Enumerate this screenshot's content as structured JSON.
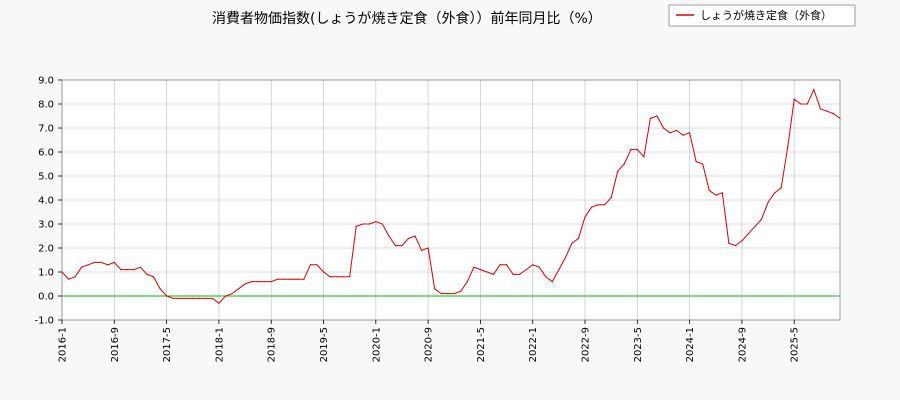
{
  "chart_data": {
    "type": "line",
    "title": "消費者物価指数(しょうが焼き定食（外食））前年同月比（%）",
    "xlabel": "",
    "ylabel": "",
    "ylim": [
      -1.0,
      9.0
    ],
    "y_ticks": [
      "-1.0",
      "0.0",
      "1.0",
      "2.0",
      "3.0",
      "4.0",
      "5.0",
      "6.0",
      "7.0",
      "8.0",
      "9.0"
    ],
    "x_ticks": [
      "2016-1",
      "2016-9",
      "2017-5",
      "2018-1",
      "2018-9",
      "2019-5",
      "2020-1",
      "2020-9",
      "2021-5",
      "2022-1",
      "2022-9",
      "2023-5",
      "2024-1",
      "2024-9",
      "2025-5"
    ],
    "grid": true,
    "legend_position": "top-right",
    "colors": {
      "series": "#dd0000",
      "zero_line": "#00bb00",
      "grid": "#cccccc"
    },
    "series": [
      {
        "name": "しょうが焼き定食（外食）",
        "x": [
          "2016-1",
          "2016-2",
          "2016-3",
          "2016-4",
          "2016-5",
          "2016-6",
          "2016-7",
          "2016-8",
          "2016-9",
          "2016-10",
          "2016-11",
          "2016-12",
          "2017-1",
          "2017-2",
          "2017-3",
          "2017-4",
          "2017-5",
          "2017-6",
          "2017-7",
          "2017-8",
          "2017-9",
          "2017-10",
          "2017-11",
          "2017-12",
          "2018-1",
          "2018-2",
          "2018-3",
          "2018-4",
          "2018-5",
          "2018-6",
          "2018-7",
          "2018-8",
          "2018-9",
          "2018-10",
          "2018-11",
          "2018-12",
          "2019-1",
          "2019-2",
          "2019-3",
          "2019-4",
          "2019-5",
          "2019-6",
          "2019-7",
          "2019-8",
          "2019-9",
          "2019-10",
          "2019-11",
          "2019-12",
          "2020-1",
          "2020-2",
          "2020-3",
          "2020-4",
          "2020-5",
          "2020-6",
          "2020-7",
          "2020-8",
          "2020-9",
          "2020-10",
          "2020-11",
          "2020-12",
          "2021-1",
          "2021-2",
          "2021-3",
          "2021-4",
          "2021-5",
          "2021-6",
          "2021-7",
          "2021-8",
          "2021-9",
          "2021-10",
          "2021-11",
          "2021-12",
          "2022-1",
          "2022-2",
          "2022-3",
          "2022-4",
          "2022-5",
          "2022-6",
          "2022-7",
          "2022-8",
          "2022-9",
          "2022-10",
          "2022-11",
          "2022-12",
          "2023-1",
          "2023-2",
          "2023-3",
          "2023-4",
          "2023-5",
          "2023-6",
          "2023-7",
          "2023-8",
          "2023-9",
          "2023-10",
          "2023-11",
          "2023-12",
          "2024-1",
          "2024-2",
          "2024-3",
          "2024-4",
          "2024-5",
          "2024-6",
          "2024-7",
          "2024-8",
          "2024-9",
          "2024-10",
          "2024-11",
          "2024-12",
          "2025-1",
          "2025-2",
          "2025-3",
          "2025-4",
          "2025-5",
          "2025-6",
          "2025-7",
          "2025-8",
          "2025-9",
          "2025-10",
          "2025-11",
          "2025-12"
        ],
        "values": [
          1.0,
          0.7,
          0.8,
          1.2,
          1.3,
          1.4,
          1.4,
          1.3,
          1.4,
          1.1,
          1.1,
          1.1,
          1.2,
          0.9,
          0.8,
          0.3,
          0.0,
          -0.1,
          -0.1,
          -0.1,
          -0.1,
          -0.1,
          -0.1,
          -0.1,
          -0.3,
          0.0,
          0.1,
          0.3,
          0.5,
          0.6,
          0.6,
          0.6,
          0.6,
          0.7,
          0.7,
          0.7,
          0.7,
          0.7,
          1.3,
          1.3,
          1.0,
          0.8,
          0.8,
          0.8,
          0.8,
          2.9,
          3.0,
          3.0,
          3.1,
          3.0,
          2.5,
          2.1,
          2.1,
          2.4,
          2.5,
          1.9,
          2.0,
          0.3,
          0.1,
          0.1,
          0.1,
          0.2,
          0.6,
          1.2,
          1.1,
          1.0,
          0.9,
          1.3,
          1.3,
          0.9,
          0.9,
          1.1,
          1.3,
          1.2,
          0.8,
          0.6,
          1.1,
          1.6,
          2.2,
          2.4,
          3.3,
          3.7,
          3.8,
          3.8,
          4.1,
          5.2,
          5.5,
          6.1,
          6.1,
          5.8,
          7.4,
          7.5,
          7.0,
          6.8,
          6.9,
          6.7,
          6.8,
          5.6,
          5.5,
          4.4,
          4.2,
          4.3,
          2.2,
          2.1,
          2.3,
          2.6,
          2.9,
          3.2,
          3.9,
          4.3,
          4.5,
          6.2,
          8.2,
          8.0,
          8.0,
          8.6,
          7.8,
          7.7,
          7.6,
          7.4
        ]
      }
    ]
  }
}
